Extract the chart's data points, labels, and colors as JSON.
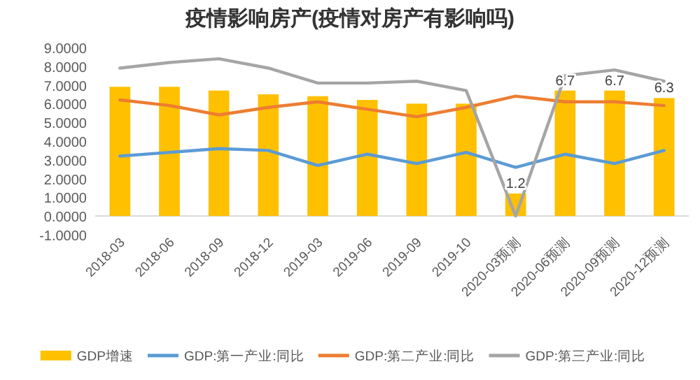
{
  "chart_data": {
    "type": "bar",
    "title": "疫情影响房产(疫情对房产有影响吗)",
    "categories": [
      "2018-03",
      "2018-06",
      "2018-09",
      "2018-12",
      "2019-03",
      "2019-06",
      "2019-09",
      "2019-10",
      "2020-03预测",
      "2020-06预测",
      "2020-09预测",
      "2020-12预测"
    ],
    "series": [
      {
        "name": "GDP增速",
        "color": "#ffc000",
        "values": [
          6.9,
          6.9,
          6.7,
          6.5,
          6.4,
          6.2,
          6.0,
          6.0,
          1.2,
          6.7,
          6.7,
          6.3
        ],
        "value_labels": [
          null,
          null,
          null,
          null,
          null,
          null,
          null,
          null,
          "1.2",
          "6.7",
          "6.7",
          "6.3"
        ]
      },
      {
        "name": "GDP:第一产业:同比",
        "type": "line",
        "color": "#5b9bd5",
        "values": [
          3.2,
          3.4,
          3.6,
          3.5,
          2.7,
          3.3,
          2.8,
          3.4,
          2.6,
          3.3,
          2.8,
          3.5
        ]
      },
      {
        "name": "GDP:第二产业:同比",
        "type": "line",
        "color": "#ed7d31",
        "values": [
          6.2,
          5.9,
          5.4,
          5.8,
          6.1,
          5.7,
          5.3,
          5.8,
          6.4,
          6.1,
          6.1,
          5.9
        ]
      },
      {
        "name": "GDP:第三产业:同比",
        "type": "line",
        "color": "#a5a5a5",
        "values": [
          7.9,
          8.2,
          8.4,
          7.9,
          7.1,
          7.1,
          7.2,
          6.7,
          0.0,
          7.5,
          7.8,
          7.2
        ]
      }
    ],
    "ylim": [
      -1,
      9
    ],
    "yticks": [
      {
        "value": -1,
        "label": "-1.0000"
      },
      {
        "value": 0,
        "label": "0.0000"
      },
      {
        "value": 1,
        "label": "1.0000"
      },
      {
        "value": 2,
        "label": "2.0000"
      },
      {
        "value": 3,
        "label": "3.0000"
      },
      {
        "value": 4,
        "label": "4.0000"
      },
      {
        "value": 5,
        "label": "5.0000"
      },
      {
        "value": 6,
        "label": "6.0000"
      },
      {
        "value": 7,
        "label": "7.0000"
      },
      {
        "value": 8,
        "label": "8.0000"
      },
      {
        "value": 9,
        "label": "9.0000"
      }
    ],
    "legend": "bottom"
  }
}
